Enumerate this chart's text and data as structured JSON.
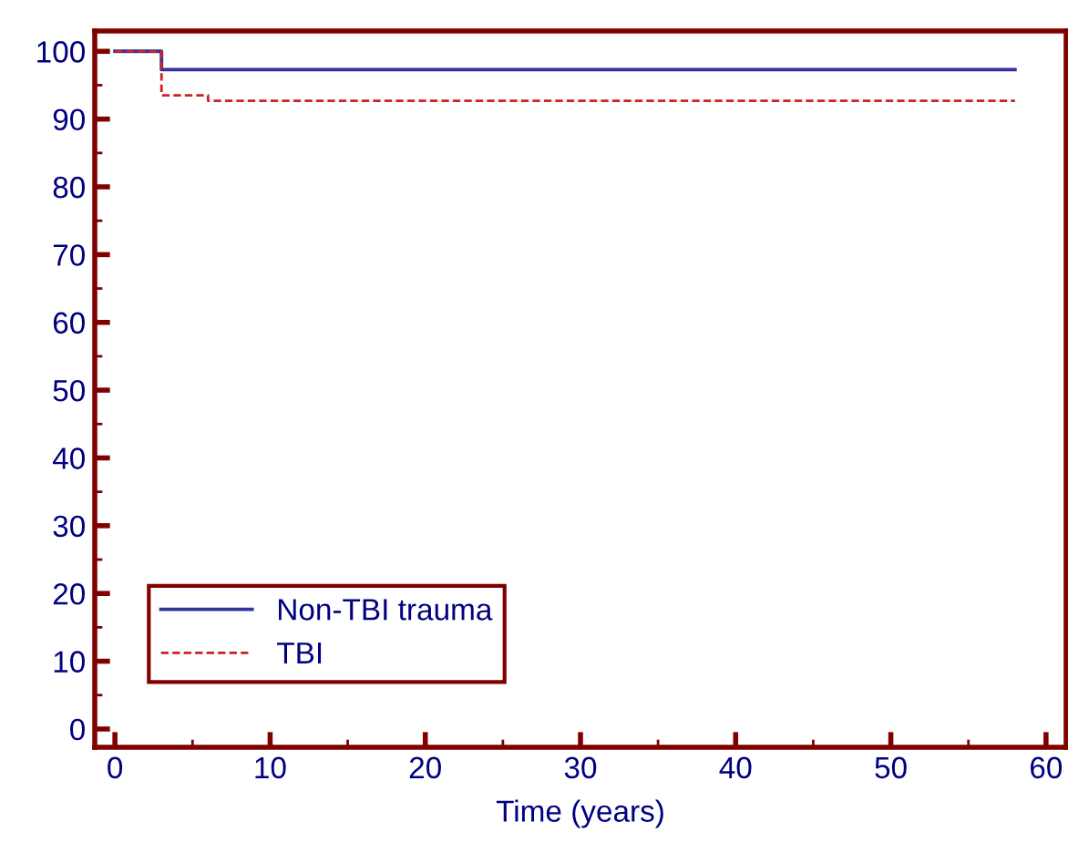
{
  "chart_data": {
    "type": "step",
    "xlabel": "Time (years)",
    "series": [
      {
        "name": "Non-TBI trauma",
        "color": "#333399",
        "x": [
          0,
          3,
          58
        ],
        "values": [
          100,
          97.3,
          97.3
        ],
        "line_style": "solid"
      },
      {
        "name": "TBI",
        "color": "#cc2222",
        "x": [
          0,
          3,
          6,
          58
        ],
        "values": [
          100,
          93.5,
          92.7,
          92.7
        ],
        "line_style": "dashed"
      }
    ],
    "xlim": [
      -1.3,
      61.3
    ],
    "ylim": [
      -2.7,
      103
    ],
    "xticks": [
      0,
      10,
      20,
      30,
      40,
      50,
      60
    ],
    "yticks": [
      0,
      10,
      20,
      30,
      40,
      50,
      60,
      70,
      80,
      90,
      100
    ],
    "grid": false,
    "legend": "bottom left",
    "marker": "none"
  }
}
